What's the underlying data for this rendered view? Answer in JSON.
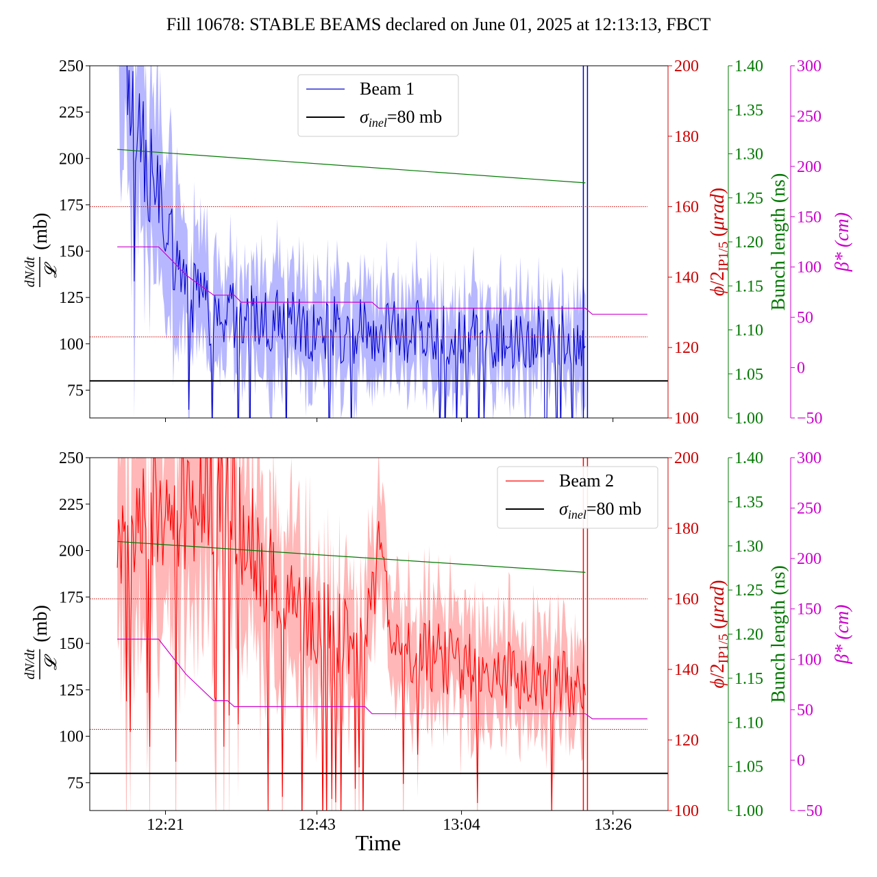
{
  "figure": {
    "title": "Fill 10678: STABLE BEAMS declared on June 01, 2025 at 12:13:13, FBCT",
    "xlabel": "Time"
  },
  "colors": {
    "beam1": "#0000cc",
    "beam1_band": "#aaaaff",
    "beam2": "#ff0000",
    "beam2_band": "#ffaaaa",
    "phi_axis": "#cc0000",
    "bunch_axis": "#007700",
    "beta_axis": "#cc00cc",
    "reference": "#000000"
  },
  "chart_data": [
    {
      "type": "line",
      "panel": "top",
      "legend": {
        "placement": "top-center",
        "entries": [
          "Beam 1",
          "σinel=80 mb"
        ]
      },
      "x": {
        "type": "time",
        "range": [
          "12:10",
          "13:34"
        ],
        "ticks": [
          "12:21",
          "12:43",
          "13:04",
          "13:26"
        ],
        "tick_labels_shown": false
      },
      "y_left": {
        "label": "dN/dt / 𝓛 (mb)",
        "range": [
          60,
          250
        ],
        "ticks": [
          75,
          100,
          125,
          150,
          175,
          200,
          225,
          250
        ]
      },
      "y_phi": {
        "label": "ϕ/2IP1/5 (μrad)",
        "range": [
          100,
          200
        ],
        "ticks": [
          100,
          120,
          140,
          160,
          180,
          200
        ]
      },
      "y_bunch": {
        "label": "Bunch length (ns)",
        "range": [
          1.0,
          1.4
        ],
        "ticks": [
          "1.00",
          "1.05",
          "1.10",
          "1.15",
          "1.20",
          "1.25",
          "1.30",
          "1.35",
          "1.40"
        ]
      },
      "y_beta": {
        "label": "β* (cm)",
        "range": [
          -50,
          300
        ],
        "ticks": [
          "−50",
          "0",
          "50",
          "100",
          "150",
          "200",
          "250",
          "300"
        ]
      },
      "series": [
        {
          "name": "Beam 1",
          "axis": "left",
          "time_start": "12:14",
          "time_end": "13:22",
          "anchors": [
            [
              0,
              300
            ],
            [
              2,
              230
            ],
            [
              4,
              200
            ],
            [
              6,
              175
            ],
            [
              8,
              150
            ],
            [
              10,
              128
            ],
            [
              14,
              116
            ],
            [
              20,
              112
            ],
            [
              30,
              108
            ],
            [
              40,
              106
            ],
            [
              50,
              105
            ],
            [
              60,
              104
            ],
            [
              68,
              102
            ]
          ],
          "amplitude": [
            [
              0,
              30
            ],
            [
              6,
              28
            ],
            [
              12,
              20
            ],
            [
              30,
              18
            ],
            [
              68,
              18
            ]
          ],
          "band_halfwidth": [
            [
              0,
              60
            ],
            [
              6,
              45
            ],
            [
              12,
              28
            ],
            [
              30,
              24
            ],
            [
              68,
              22
            ]
          ],
          "end_spike": "rises above 250 at 13:22"
        },
        {
          "name": "σinel=80 mb",
          "axis": "left",
          "value": 80
        },
        {
          "name": "bunch length",
          "axis": "bunch",
          "points": [
            [
              "12:14",
              1.305
            ],
            [
              "13:22",
              1.267
            ]
          ]
        },
        {
          "name": "β*",
          "axis": "beta",
          "points": [
            [
              "12:14",
              120
            ],
            [
              "12:20",
              120
            ],
            [
              "12:24",
              92
            ],
            [
              "12:28",
              72
            ],
            [
              "12:31",
              72
            ],
            [
              "12:32",
              65
            ],
            [
              "12:51",
              65
            ],
            [
              "12:52",
              59
            ],
            [
              "13:22",
              59
            ],
            [
              "13:23",
              53
            ],
            [
              "13:31",
              53
            ]
          ]
        },
        {
          "name": "upper crossing reference",
          "axis": "phi",
          "value": 160,
          "style": "dotted"
        },
        {
          "name": "lower crossing reference",
          "axis": "phi",
          "value": 123,
          "style": "dotted"
        }
      ]
    },
    {
      "type": "line",
      "panel": "bottom",
      "legend": {
        "placement": "top-right",
        "entries": [
          "Beam 2",
          "σinel=80 mb"
        ]
      },
      "x": {
        "type": "time",
        "range": [
          "12:10",
          "13:34"
        ],
        "ticks": [
          "12:21",
          "12:43",
          "13:04",
          "13:26"
        ],
        "tick_labels_shown": true
      },
      "y_left": {
        "label": "dN/dt / 𝓛 (mb)",
        "range": [
          60,
          250
        ],
        "ticks": [
          75,
          100,
          125,
          150,
          175,
          200,
          225,
          250
        ]
      },
      "y_phi": {
        "label": "ϕ/2IP1/5 (μrad)",
        "range": [
          100,
          200
        ],
        "ticks": [
          100,
          120,
          140,
          160,
          180,
          200
        ]
      },
      "y_bunch": {
        "label": "Bunch length (ns)",
        "range": [
          1.0,
          1.4
        ],
        "ticks": [
          "1.00",
          "1.05",
          "1.10",
          "1.15",
          "1.20",
          "1.25",
          "1.30",
          "1.35",
          "1.40"
        ]
      },
      "y_beta": {
        "label": "β* (cm)",
        "range": [
          -50,
          300
        ],
        "ticks": [
          "−50",
          "0",
          "50",
          "100",
          "150",
          "200",
          "250",
          "300"
        ]
      },
      "series": [
        {
          "name": "Beam 2",
          "axis": "left",
          "time_start": "12:14",
          "time_end": "13:22",
          "anchors": [
            [
              0,
              190
            ],
            [
              4,
              215
            ],
            [
              8,
              225
            ],
            [
              12,
              230
            ],
            [
              16,
              230
            ],
            [
              20,
              200
            ],
            [
              24,
              175
            ],
            [
              28,
              165
            ],
            [
              32,
              158
            ],
            [
              36,
              150
            ],
            [
              38,
              200
            ],
            [
              40,
              150
            ],
            [
              46,
              142
            ],
            [
              55,
              135
            ],
            [
              62,
              130
            ],
            [
              68,
              125
            ]
          ],
          "amplitude": [
            [
              0,
              30
            ],
            [
              10,
              38
            ],
            [
              22,
              30
            ],
            [
              40,
              20
            ],
            [
              68,
              18
            ]
          ],
          "band_halfwidth": [
            [
              0,
              60
            ],
            [
              12,
              55
            ],
            [
              24,
              40
            ],
            [
              40,
              28
            ],
            [
              68,
              24
            ]
          ],
          "end_spike": "rises above 250 at 13:22"
        },
        {
          "name": "σinel=80 mb",
          "axis": "left",
          "value": 80
        },
        {
          "name": "bunch length",
          "axis": "bunch",
          "points": [
            [
              "12:14",
              1.305
            ],
            [
              "13:22",
              1.27
            ]
          ]
        },
        {
          "name": "β*",
          "axis": "beta",
          "points": [
            [
              "12:14",
              120
            ],
            [
              "12:20",
              120
            ],
            [
              "12:24",
              85
            ],
            [
              "12:28",
              59
            ],
            [
              "12:30",
              59
            ],
            [
              "12:31",
              53
            ],
            [
              "12:50",
              53
            ],
            [
              "12:51",
              46
            ],
            [
              "13:22",
              46
            ],
            [
              "13:23",
              41
            ],
            [
              "13:31",
              41
            ]
          ]
        },
        {
          "name": "upper crossing reference",
          "axis": "phi",
          "value": 160,
          "style": "dotted"
        },
        {
          "name": "lower crossing reference",
          "axis": "phi",
          "value": 123,
          "style": "dotted"
        }
      ]
    }
  ]
}
